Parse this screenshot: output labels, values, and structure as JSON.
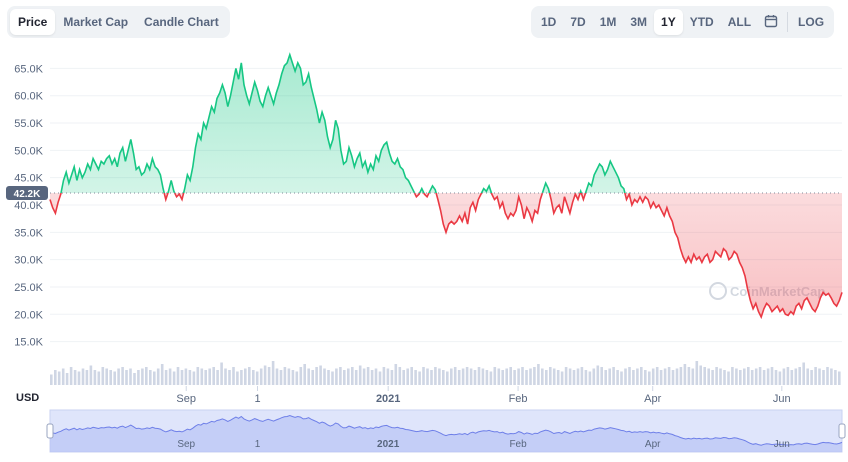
{
  "tabs": [
    "Price",
    "Market Cap",
    "Candle Chart"
  ],
  "ranges": [
    "1D",
    "7D",
    "1M",
    "3M",
    "1Y",
    "YTD",
    "ALL"
  ],
  "active_tab": "Price",
  "active_range": "1Y",
  "log_label": "LOG",
  "currency_label": "USD",
  "watermark": "CoinMarketCap",
  "colors": {
    "up": "#16c784",
    "down": "#ea3943",
    "nav": "#6e7fe8",
    "grid": "#eff2f5"
  },
  "chart_data": {
    "type": "area",
    "ylim": [
      12000,
      68000
    ],
    "yticks": [
      "15.0K",
      "20.0K",
      "25.0K",
      "30.0K",
      "35.0K",
      "40.0K",
      "45.0K",
      "50.0K",
      "55.0K",
      "60.0K",
      "65.0K"
    ],
    "ytick_values": [
      15000,
      20000,
      25000,
      30000,
      35000,
      40000,
      45000,
      50000,
      55000,
      60000,
      65000
    ],
    "xticks": [
      "Sep",
      "1",
      "2021",
      "Feb",
      "Apr",
      "Jun"
    ],
    "xtick_bold": [
      "2021"
    ],
    "baseline": 42200,
    "baseline_label": "42.2K",
    "price_series": [
      [
        0,
        41000
      ],
      [
        2,
        39500
      ],
      [
        4,
        38500
      ],
      [
        6,
        40500
      ],
      [
        8,
        42000
      ],
      [
        10,
        44500
      ],
      [
        12,
        46000
      ],
      [
        14,
        44000
      ],
      [
        16,
        45500
      ],
      [
        18,
        47000
      ],
      [
        20,
        44500
      ],
      [
        22,
        46500
      ],
      [
        24,
        45000
      ],
      [
        26,
        46000
      ],
      [
        28,
        47500
      ],
      [
        30,
        46500
      ],
      [
        32,
        48500
      ],
      [
        34,
        47500
      ],
      [
        36,
        46500
      ],
      [
        38,
        48000
      ],
      [
        40,
        47500
      ],
      [
        42,
        48500
      ],
      [
        44,
        49000
      ],
      [
        46,
        47500
      ],
      [
        48,
        48500
      ],
      [
        50,
        47000
      ],
      [
        52,
        49500
      ],
      [
        54,
        50500
      ],
      [
        56,
        48000
      ],
      [
        58,
        50000
      ],
      [
        60,
        52000
      ],
      [
        62,
        49500
      ],
      [
        64,
        46500
      ],
      [
        66,
        47000
      ],
      [
        68,
        45500
      ],
      [
        70,
        46000
      ],
      [
        72,
        47500
      ],
      [
        74,
        46500
      ],
      [
        76,
        48500
      ],
      [
        78,
        47000
      ],
      [
        80,
        46500
      ],
      [
        82,
        45500
      ],
      [
        84,
        43000
      ],
      [
        86,
        41000
      ],
      [
        88,
        42500
      ],
      [
        90,
        44500
      ],
      [
        92,
        42500
      ],
      [
        94,
        41500
      ],
      [
        96,
        42000
      ],
      [
        98,
        41000
      ],
      [
        100,
        43000
      ],
      [
        102,
        45500
      ],
      [
        104,
        44500
      ],
      [
        106,
        47000
      ],
      [
        108,
        50500
      ],
      [
        110,
        53000
      ],
      [
        112,
        52000
      ],
      [
        114,
        55000
      ],
      [
        116,
        54000
      ],
      [
        118,
        56000
      ],
      [
        120,
        58000
      ],
      [
        122,
        57000
      ],
      [
        124,
        59500
      ],
      [
        126,
        60500
      ],
      [
        128,
        62000
      ],
      [
        130,
        60500
      ],
      [
        132,
        58000
      ],
      [
        134,
        60000
      ],
      [
        136,
        62500
      ],
      [
        138,
        65000
      ],
      [
        140,
        63000
      ],
      [
        142,
        66000
      ],
      [
        144,
        62000
      ],
      [
        146,
        60000
      ],
      [
        148,
        58500
      ],
      [
        150,
        60500
      ],
      [
        152,
        62500
      ],
      [
        154,
        61000
      ],
      [
        156,
        59000
      ],
      [
        158,
        58000
      ],
      [
        160,
        60000
      ],
      [
        162,
        61500
      ],
      [
        164,
        60000
      ],
      [
        166,
        58500
      ],
      [
        168,
        60500
      ],
      [
        170,
        62000
      ],
      [
        172,
        64000
      ],
      [
        174,
        65500
      ],
      [
        176,
        66000
      ],
      [
        178,
        67500
      ],
      [
        180,
        66000
      ],
      [
        182,
        64500
      ],
      [
        184,
        66000
      ],
      [
        186,
        65000
      ],
      [
        188,
        62000
      ],
      [
        190,
        62500
      ],
      [
        192,
        64000
      ],
      [
        194,
        61500
      ],
      [
        196,
        59500
      ],
      [
        198,
        57500
      ],
      [
        200,
        55000
      ],
      [
        202,
        57000
      ],
      [
        204,
        55500
      ],
      [
        206,
        52500
      ],
      [
        208,
        50500
      ],
      [
        210,
        52000
      ],
      [
        212,
        55500
      ],
      [
        214,
        54000
      ],
      [
        216,
        50000
      ],
      [
        218,
        47500
      ],
      [
        220,
        48000
      ],
      [
        222,
        50500
      ],
      [
        224,
        49000
      ],
      [
        226,
        47000
      ],
      [
        228,
        48500
      ],
      [
        230,
        49500
      ],
      [
        232,
        47000
      ],
      [
        234,
        48000
      ],
      [
        236,
        46000
      ],
      [
        238,
        47500
      ],
      [
        240,
        46500
      ],
      [
        242,
        49000
      ],
      [
        244,
        48000
      ],
      [
        246,
        50000
      ],
      [
        248,
        51000
      ],
      [
        250,
        51500
      ],
      [
        252,
        49500
      ],
      [
        254,
        48000
      ],
      [
        256,
        47500
      ],
      [
        258,
        48500
      ],
      [
        260,
        47000
      ],
      [
        262,
        46500
      ],
      [
        264,
        45000
      ],
      [
        266,
        44500
      ],
      [
        268,
        43500
      ],
      [
        270,
        42500
      ],
      [
        272,
        41500
      ],
      [
        274,
        42000
      ],
      [
        276,
        43000
      ],
      [
        278,
        42000
      ],
      [
        280,
        41500
      ],
      [
        282,
        42500
      ],
      [
        284,
        43500
      ],
      [
        286,
        42800
      ],
      [
        288,
        41000
      ],
      [
        290,
        39000
      ],
      [
        292,
        36500
      ],
      [
        294,
        35000
      ],
      [
        296,
        36500
      ],
      [
        298,
        37000
      ],
      [
        300,
        36500
      ],
      [
        302,
        37000
      ],
      [
        304,
        38000
      ],
      [
        306,
        37000
      ],
      [
        308,
        38500
      ],
      [
        310,
        36500
      ],
      [
        312,
        39500
      ],
      [
        314,
        40500
      ],
      [
        316,
        39000
      ],
      [
        318,
        41000
      ],
      [
        320,
        42000
      ],
      [
        322,
        43000
      ],
      [
        324,
        42500
      ],
      [
        326,
        43500
      ],
      [
        328,
        42000
      ],
      [
        330,
        41000
      ],
      [
        332,
        41500
      ],
      [
        334,
        39500
      ],
      [
        336,
        40500
      ],
      [
        338,
        38500
      ],
      [
        340,
        37500
      ],
      [
        342,
        38500
      ],
      [
        344,
        38000
      ],
      [
        346,
        39000
      ],
      [
        348,
        41500
      ],
      [
        350,
        40000
      ],
      [
        352,
        37500
      ],
      [
        354,
        39500
      ],
      [
        356,
        38500
      ],
      [
        358,
        37000
      ],
      [
        360,
        39000
      ],
      [
        362,
        38500
      ],
      [
        364,
        41000
      ],
      [
        366,
        42500
      ],
      [
        368,
        44000
      ],
      [
        370,
        43000
      ],
      [
        372,
        41000
      ],
      [
        374,
        38500
      ],
      [
        376,
        39500
      ],
      [
        378,
        40000
      ],
      [
        380,
        38500
      ],
      [
        382,
        41500
      ],
      [
        384,
        40000
      ],
      [
        386,
        38500
      ],
      [
        388,
        40500
      ],
      [
        390,
        42000
      ],
      [
        392,
        41000
      ],
      [
        394,
        42500
      ],
      [
        396,
        41000
      ],
      [
        398,
        42500
      ],
      [
        400,
        44000
      ],
      [
        402,
        43500
      ],
      [
        404,
        45500
      ],
      [
        406,
        46500
      ],
      [
        408,
        47500
      ],
      [
        410,
        47000
      ],
      [
        412,
        45500
      ],
      [
        414,
        46500
      ],
      [
        416,
        48000
      ],
      [
        418,
        47000
      ],
      [
        420,
        46000
      ],
      [
        422,
        45000
      ],
      [
        424,
        43500
      ],
      [
        426,
        43000
      ],
      [
        428,
        41000
      ],
      [
        430,
        42000
      ],
      [
        432,
        40000
      ],
      [
        434,
        41000
      ],
      [
        436,
        40500
      ],
      [
        438,
        41500
      ],
      [
        440,
        40500
      ],
      [
        442,
        41500
      ],
      [
        444,
        41000
      ],
      [
        446,
        39500
      ],
      [
        448,
        40500
      ],
      [
        450,
        39500
      ],
      [
        452,
        40000
      ],
      [
        454,
        39000
      ],
      [
        456,
        38000
      ],
      [
        458,
        39500
      ],
      [
        460,
        38000
      ],
      [
        462,
        37000
      ],
      [
        464,
        35000
      ],
      [
        466,
        34000
      ],
      [
        468,
        32000
      ],
      [
        470,
        30500
      ],
      [
        472,
        29500
      ],
      [
        474,
        30500
      ],
      [
        476,
        29500
      ],
      [
        478,
        31000
      ],
      [
        480,
        30000
      ],
      [
        482,
        30500
      ],
      [
        484,
        29500
      ],
      [
        486,
        30500
      ],
      [
        488,
        31000
      ],
      [
        490,
        29500
      ],
      [
        492,
        30000
      ],
      [
        494,
        31500
      ],
      [
        496,
        31000
      ],
      [
        498,
        30500
      ],
      [
        500,
        32000
      ],
      [
        502,
        31500
      ],
      [
        504,
        30000
      ],
      [
        506,
        30500
      ],
      [
        508,
        31500
      ],
      [
        510,
        31000
      ],
      [
        512,
        29500
      ],
      [
        514,
        28500
      ],
      [
        516,
        27000
      ],
      [
        518,
        24500
      ],
      [
        520,
        22500
      ],
      [
        522,
        21000
      ],
      [
        524,
        22000
      ],
      [
        526,
        20500
      ],
      [
        528,
        19500
      ],
      [
        530,
        21000
      ],
      [
        532,
        22000
      ],
      [
        534,
        21500
      ],
      [
        536,
        20500
      ],
      [
        538,
        21000
      ],
      [
        540,
        21500
      ],
      [
        542,
        20500
      ],
      [
        544,
        21000
      ],
      [
        546,
        20000
      ],
      [
        548,
        19800
      ],
      [
        550,
        20500
      ],
      [
        552,
        20000
      ],
      [
        554,
        21500
      ],
      [
        556,
        22000
      ],
      [
        558,
        21000
      ],
      [
        560,
        22500
      ],
      [
        562,
        23000
      ],
      [
        564,
        22000
      ],
      [
        566,
        21000
      ],
      [
        568,
        20500
      ],
      [
        570,
        21500
      ],
      [
        572,
        23000
      ],
      [
        574,
        24000
      ],
      [
        576,
        23500
      ],
      [
        578,
        23800
      ],
      [
        580,
        23000
      ],
      [
        582,
        22000
      ],
      [
        584,
        21500
      ],
      [
        586,
        22500
      ],
      [
        588,
        24000
      ]
    ],
    "volume_heights": [
      0.35,
      0.5,
      0.45,
      0.55,
      0.4,
      0.6,
      0.5,
      0.45,
      0.55,
      0.5,
      0.65,
      0.5,
      0.45,
      0.6,
      0.55,
      0.5,
      0.45,
      0.55,
      0.6,
      0.5,
      0.55,
      0.4,
      0.5,
      0.55,
      0.6,
      0.5,
      0.45,
      0.55,
      0.7,
      0.5,
      0.55,
      0.45,
      0.6,
      0.5,
      0.55,
      0.5,
      0.45,
      0.6,
      0.55,
      0.5,
      0.55,
      0.6,
      0.5,
      0.75,
      0.55,
      0.5,
      0.6,
      0.45,
      0.5,
      0.55,
      0.6,
      0.5,
      0.45,
      0.55,
      0.65,
      0.6,
      0.8,
      0.55,
      0.5,
      0.6,
      0.55,
      0.5,
      0.45,
      0.6,
      0.7,
      0.55,
      0.5,
      0.6,
      0.65,
      0.55,
      0.5,
      0.45,
      0.55,
      0.6,
      0.5,
      0.55,
      0.6,
      0.5,
      0.65,
      0.55,
      0.6,
      0.5,
      0.55,
      0.45,
      0.6,
      0.55,
      0.5,
      0.7,
      0.6,
      0.5,
      0.55,
      0.6,
      0.5,
      0.45,
      0.6,
      0.55,
      0.5,
      0.6,
      0.55,
      0.5,
      0.45,
      0.55,
      0.6,
      0.5,
      0.55,
      0.6,
      0.55,
      0.5,
      0.6,
      0.55,
      0.5,
      0.45,
      0.6,
      0.55,
      0.5,
      0.55,
      0.6,
      0.5,
      0.55,
      0.6,
      0.5,
      0.55,
      0.6,
      0.7,
      0.55,
      0.5,
      0.6,
      0.55,
      0.5,
      0.45,
      0.6,
      0.55,
      0.5,
      0.55,
      0.6,
      0.5,
      0.45,
      0.55,
      0.65,
      0.6,
      0.5,
      0.55,
      0.6,
      0.5,
      0.45,
      0.55,
      0.6,
      0.5,
      0.55,
      0.6,
      0.5,
      0.45,
      0.55,
      0.6,
      0.5,
      0.55,
      0.6,
      0.5,
      0.55,
      0.6,
      0.7,
      0.6,
      0.55,
      0.8,
      0.65,
      0.6,
      0.55,
      0.5,
      0.6,
      0.55,
      0.5,
      0.45,
      0.6,
      0.55,
      0.5,
      0.55,
      0.6,
      0.5,
      0.55,
      0.6,
      0.5,
      0.55,
      0.6,
      0.5,
      0.45,
      0.55,
      0.6,
      0.5,
      0.55,
      0.6,
      0.75,
      0.55,
      0.5,
      0.6,
      0.55,
      0.5,
      0.6,
      0.55,
      0.5,
      0.45
    ]
  }
}
